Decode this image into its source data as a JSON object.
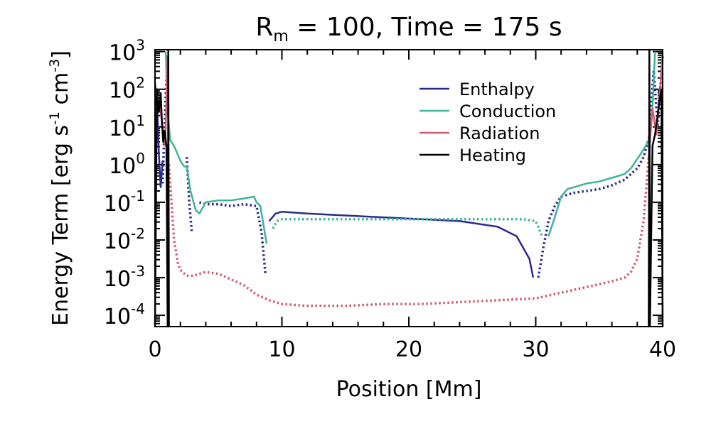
{
  "chart_data": {
    "type": "line",
    "title": {
      "prefix": "R",
      "subscript": "m",
      "suffix": " = 100, Time = 175 s"
    },
    "xlabel": "Position [Mm]",
    "ylabel": {
      "text": "Energy Term [erg s",
      "sup1": "-1",
      "mid": " cm",
      "sup2": "-3",
      "end": "]"
    },
    "xlim": [
      0,
      40
    ],
    "ylim_log10": [
      -4.3,
      3.05
    ],
    "scale_y": "log",
    "x_ticks": [
      0,
      10,
      20,
      30,
      40
    ],
    "x_tick_labels": [
      "0",
      "10",
      "20",
      "30",
      "40"
    ],
    "y_ticks": [
      {
        "base": "10",
        "exp": "3",
        "value": 3
      },
      {
        "base": "10",
        "exp": "2",
        "value": 2
      },
      {
        "base": "10",
        "exp": "1",
        "value": 1
      },
      {
        "base": "10",
        "exp": "0",
        "value": 0
      },
      {
        "base": "10",
        "exp": "-1",
        "value": -1
      },
      {
        "base": "10",
        "exp": "-2",
        "value": -2
      },
      {
        "base": "10",
        "exp": "-3",
        "value": -3
      },
      {
        "base": "10",
        "exp": "-4",
        "value": -4
      }
    ],
    "legend_position": "top-right",
    "series": [
      {
        "name": "Enthalpy",
        "color": "#2a2a8c",
        "segments": [
          {
            "style": "solid",
            "x": [
              0.0,
              0.2,
              0.3,
              0.45,
              0.6
            ],
            "log10y": [
              2.2,
              1.3,
              0.3,
              -0.6,
              0.1
            ]
          },
          {
            "style": "dotted",
            "x": [
              0.6,
              0.8,
              1.0
            ],
            "log10y": [
              -0.5,
              1.5,
              2.9
            ]
          },
          {
            "style": "dotted",
            "x": [
              2.5,
              2.7,
              2.9
            ],
            "log10y": [
              0.2,
              -1.0,
              -1.8
            ]
          },
          {
            "style": "dotted",
            "x": [
              3.5,
              4,
              5,
              6,
              7,
              8,
              8.4,
              8.7
            ],
            "log10y": [
              -1.0,
              -1.05,
              -1.05,
              -1.1,
              -1.05,
              -1.1,
              -1.8,
              -2.9
            ]
          },
          {
            "style": "solid",
            "x": [
              9.0,
              9.5,
              10,
              12,
              15,
              18,
              21,
              24,
              27,
              28.5,
              29.5,
              29.8
            ],
            "log10y": [
              -1.5,
              -1.3,
              -1.25,
              -1.3,
              -1.35,
              -1.4,
              -1.45,
              -1.5,
              -1.65,
              -1.9,
              -2.5,
              -3.0
            ]
          },
          {
            "style": "dotted",
            "x": [
              30.2,
              30.6,
              31,
              31.5,
              32,
              33,
              34,
              35,
              36,
              37,
              38,
              38.5,
              39
            ],
            "log10y": [
              -3.0,
              -2.2,
              -1.5,
              -1.1,
              -0.85,
              -0.75,
              -0.7,
              -0.65,
              -0.55,
              -0.4,
              -0.1,
              0.2,
              0.8
            ]
          },
          {
            "style": "dotted",
            "x": [
              39.0,
              39.3,
              39.6,
              40.0
            ],
            "log10y": [
              1.2,
              2.5,
              1.0,
              2.9
            ]
          }
        ]
      },
      {
        "name": "Conduction",
        "color": "#3fb29a",
        "segments": [
          {
            "style": "solid",
            "x": [
              0.85,
              1.0,
              1.2,
              1.5,
              2.0,
              2.3,
              2.5,
              2.8,
              3.2,
              3.5,
              4.0,
              5,
              6,
              7,
              7.8,
              8.0,
              8.3,
              8.6,
              8.8
            ],
            "log10y": [
              3.0,
              1.4,
              0.65,
              0.5,
              0.1,
              -0.05,
              -0.05,
              -0.7,
              -1.2,
              -1.3,
              -1.0,
              -0.95,
              -0.95,
              -0.9,
              -0.85,
              -1.0,
              -1.1,
              -1.7,
              -2.1
            ]
          },
          {
            "style": "dotted",
            "x": [
              9.3,
              9.6,
              10,
              12,
              15,
              18,
              21,
              24,
              27,
              29,
              30.0,
              30.5
            ],
            "log10y": [
              -1.7,
              -1.5,
              -1.45,
              -1.45,
              -1.45,
              -1.45,
              -1.45,
              -1.45,
              -1.45,
              -1.45,
              -1.5,
              -1.9
            ]
          },
          {
            "style": "solid",
            "x": [
              31.0,
              31.5,
              32.0,
              32.5,
              33,
              34,
              35,
              36,
              37,
              37.5,
              38,
              38.5,
              39.0
            ],
            "log10y": [
              -1.9,
              -1.4,
              -0.85,
              -0.65,
              -0.6,
              -0.5,
              -0.45,
              -0.35,
              -0.25,
              -0.1,
              0.15,
              0.4,
              0.7
            ]
          },
          {
            "style": "solid",
            "x": [
              39.0,
              39.2,
              39.4
            ],
            "log10y": [
              0.7,
              1.5,
              3.0
            ]
          }
        ]
      },
      {
        "name": "Radiation",
        "color": "#d45a6e",
        "segments": [
          {
            "style": "solid",
            "x": [
              0.0,
              0.4,
              0.8,
              1.0
            ],
            "log10y": [
              2.0,
              1.5,
              0.5,
              2.9
            ]
          },
          {
            "style": "dotted",
            "x": [
              1.1,
              1.3,
              1.5,
              1.8,
              2.0,
              2.5,
              3,
              4,
              5,
              6,
              7,
              8,
              9,
              10,
              12,
              15,
              18,
              21,
              24,
              27,
              30,
              32,
              34,
              36,
              37,
              37.5,
              38,
              38.5,
              38.9
            ],
            "log10y": [
              0.0,
              -1.0,
              -2.0,
              -2.6,
              -2.8,
              -2.95,
              -2.95,
              -2.85,
              -2.9,
              -3.05,
              -3.2,
              -3.45,
              -3.6,
              -3.7,
              -3.75,
              -3.75,
              -3.7,
              -3.7,
              -3.65,
              -3.6,
              -3.55,
              -3.4,
              -3.25,
              -3.1,
              -3.0,
              -2.85,
              -2.5,
              -1.5,
              0.2
            ]
          },
          {
            "style": "solid",
            "x": [
              38.9,
              39.2,
              39.5,
              39.8,
              40.0
            ],
            "log10y": [
              0.2,
              1.5,
              0.8,
              2.0,
              2.9
            ]
          }
        ]
      },
      {
        "name": "Heating",
        "color": "#000000",
        "segments": [
          {
            "style": "solid",
            "x": [
              0.0,
              0.15,
              0.3,
              0.45,
              0.55,
              0.65,
              0.75,
              0.9,
              1.0,
              1.02,
              1.05,
              1.1
            ],
            "log10y": [
              -4.3,
              2.0,
              1.4,
              1.9,
              1.1,
              0.6,
              0.9,
              0.5,
              -4.3,
              -4.3,
              3.05,
              -4.3
            ]
          },
          {
            "style": "solid",
            "x": [
              38.9,
              38.95,
              39.0,
              39.2,
              39.4,
              39.6,
              39.75,
              39.9,
              40.0
            ],
            "log10y": [
              -4.3,
              3.05,
              -4.3,
              0.5,
              0.8,
              1.3,
              1.7,
              2.0,
              -4.3
            ]
          }
        ]
      }
    ]
  }
}
